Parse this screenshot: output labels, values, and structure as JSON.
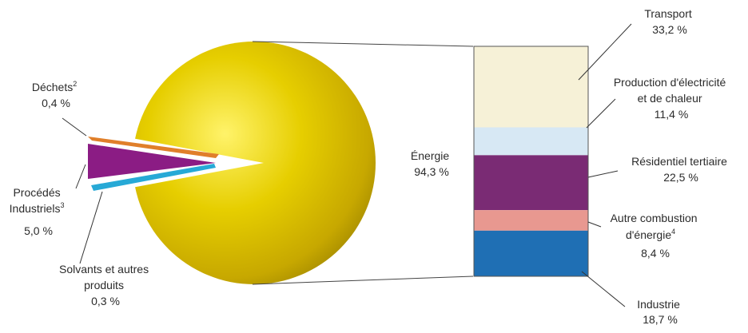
{
  "chart_data": {
    "type": "pie",
    "pie": {
      "slices": [
        {
          "label": "Énergie",
          "line2": "94,3 %",
          "value": 94.3,
          "color": "#d9c000"
        },
        {
          "label": "Déchets",
          "sup": "2",
          "line2": "0,4 %",
          "value": 0.4,
          "color": "#e07f2a"
        },
        {
          "label": "Procédés",
          "line2": "Industriels",
          "sup": "3",
          "line3": "5,0 %",
          "value": 5.0,
          "color": "#8b1c84"
        },
        {
          "label": "Solvants et autres",
          "line2": "produits",
          "line3": "0,3 %",
          "value": 0.3,
          "color": "#27a9d6"
        }
      ]
    },
    "breakdown": {
      "of": "Énergie",
      "segments": [
        {
          "label": "Transport",
          "line2": "33,2 %",
          "value": 33.2,
          "color": "#f6f1d7"
        },
        {
          "label": "Production d'électricité",
          "line2": "et de chaleur",
          "line3": "11,4 %",
          "value": 11.4,
          "color": "#d7e8f4"
        },
        {
          "label": "Résidentiel tertiaire",
          "line2": "22,5 %",
          "value": 22.5,
          "color": "#7a2b74"
        },
        {
          "label": "Autre combustion",
          "line2": "d'énergie",
          "sup": "4",
          "line3": "8,4 %",
          "value": 8.4,
          "color": "#e89890"
        },
        {
          "label": "Industrie",
          "line2": "18,7 %",
          "value": 18.7,
          "color": "#1f6fb4"
        }
      ]
    }
  }
}
